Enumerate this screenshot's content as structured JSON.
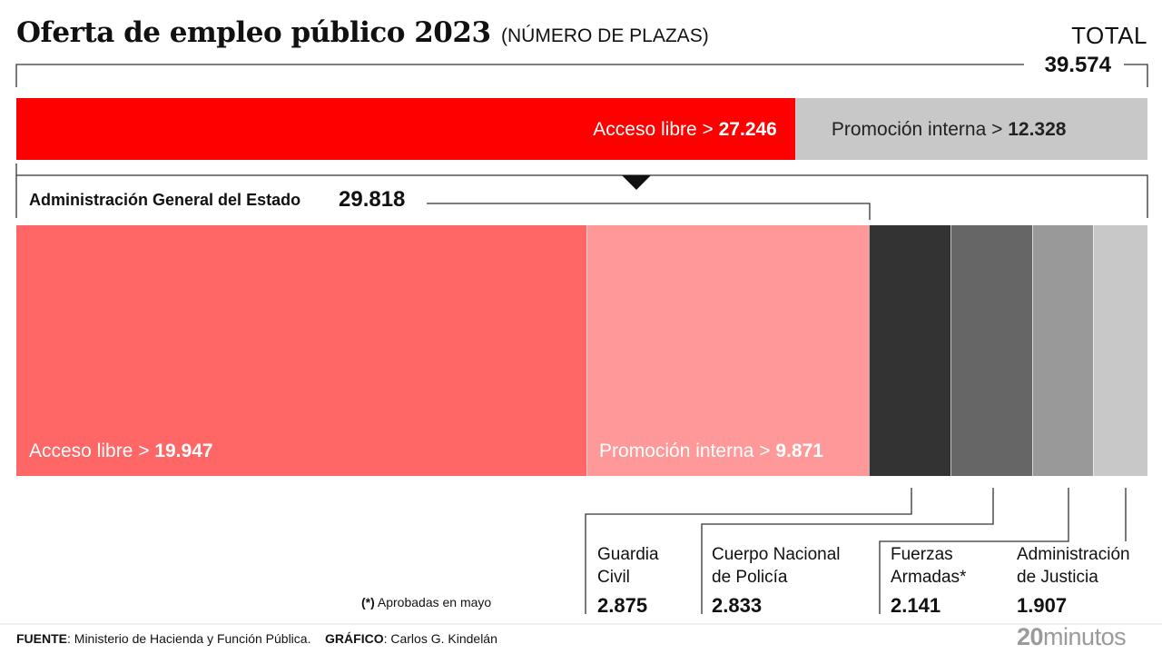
{
  "header": {
    "title": "Oferta de empleo público 2023",
    "subtitle": "(NÚMERO DE PLAZAS)",
    "total_label": "TOTAL",
    "total_value": "39.574"
  },
  "chart_data": {
    "type": "bar",
    "title": "Oferta de empleo público 2023",
    "subtitle": "(NÚMERO DE PLAZAS)",
    "total": 39574,
    "top_bar": [
      {
        "label": "Acceso libre >",
        "value": 27246,
        "value_text": "27.246",
        "color": "#ff0000"
      },
      {
        "label": "Promoción interna >",
        "value": 12328,
        "value_text": "12.328",
        "color": "#c8c8c8"
      }
    ],
    "age": {
      "label": "Administración General del Estado",
      "value": 29818,
      "value_text": "29.818"
    },
    "bottom_bar": [
      {
        "label": "Acceso libre >",
        "value": 19947,
        "value_text": "19.947",
        "color": "#ff6666"
      },
      {
        "label": "Promoción interna >",
        "value": 9871,
        "value_text": "9.871",
        "color": "#ff9999"
      },
      {
        "label": "Guardia Civil",
        "value": 2875,
        "value_text": "2.875",
        "color": "#333333"
      },
      {
        "label": "Cuerpo Nacional de Policía",
        "value": 2833,
        "value_text": "2.833",
        "color": "#666666"
      },
      {
        "label": "Fuerzas Armadas*",
        "value": 2141,
        "value_text": "2.141",
        "color": "#999999"
      },
      {
        "label": "Administración de Justicia",
        "value": 1907,
        "value_text": "1.907",
        "color": "#c8c8c8"
      }
    ]
  },
  "categories": {
    "guardia": {
      "line1": "Guardia",
      "line2": "Civil",
      "value": "2.875"
    },
    "policia": {
      "line1": "Cuerpo Nacional",
      "line2": "de Policía",
      "value": "2.833"
    },
    "fuerzas": {
      "line1": "Fuerzas",
      "line2": "Armadas*",
      "value": "2.141"
    },
    "justicia": {
      "line1": "Administración",
      "line2": "de Justicia",
      "value": "1.907"
    }
  },
  "footnote": {
    "marker": "(*)",
    "text": " Aprobadas en mayo"
  },
  "footer": {
    "source_label": "FUENTE",
    "source_text": ": Ministerio de Hacienda y Función Pública.",
    "graphic_label": "GRÁFICO",
    "graphic_text": ": Carlos G. Kindelán"
  },
  "logo": {
    "num": "20",
    "text": "minutos"
  }
}
